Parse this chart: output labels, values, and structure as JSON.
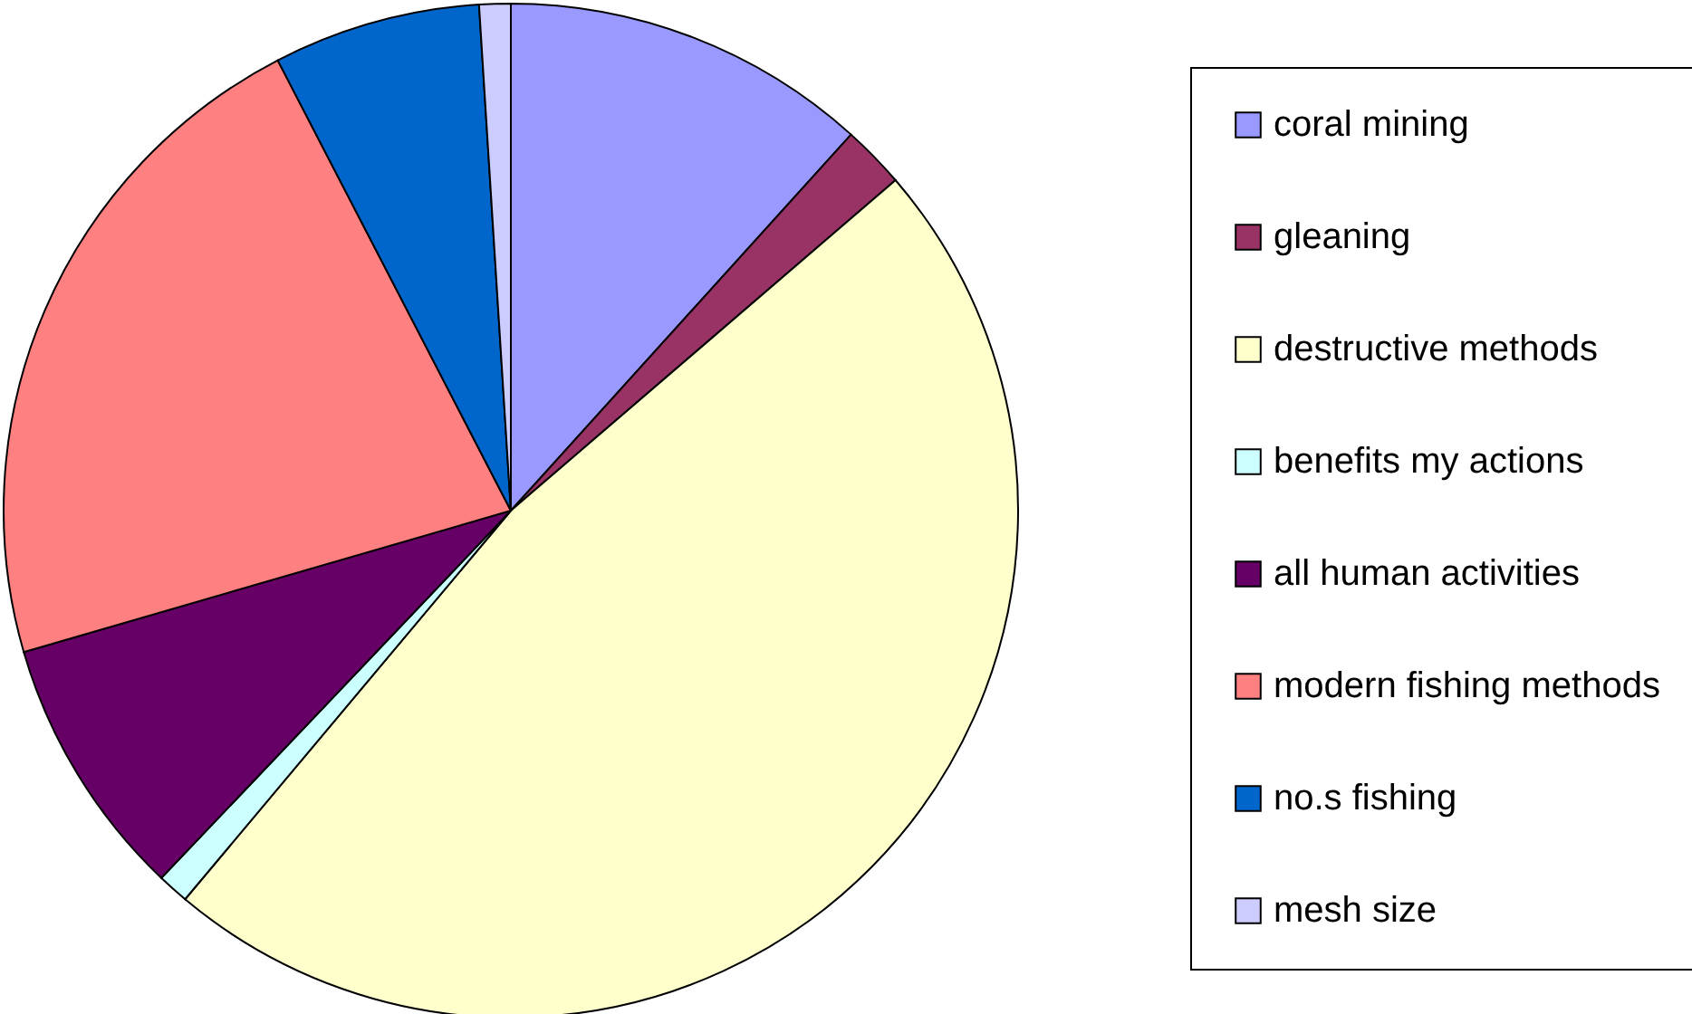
{
  "chart_data": {
    "type": "pie",
    "categories": [
      "coral mining",
      "gleaning",
      "destructive methods",
      "benefits my actions",
      "all human activities",
      "modern fishing methods",
      "no.s fishing",
      "mesh size"
    ],
    "values": [
      11.7,
      2.0,
      47.4,
      1.0,
      8.4,
      21.9,
      6.6,
      1.0
    ],
    "colors": [
      "#9999ff",
      "#993366",
      "#ffffcc",
      "#ccffff",
      "#660066",
      "#ff8080",
      "#0066cc",
      "#ccccff"
    ],
    "legend": "right"
  }
}
